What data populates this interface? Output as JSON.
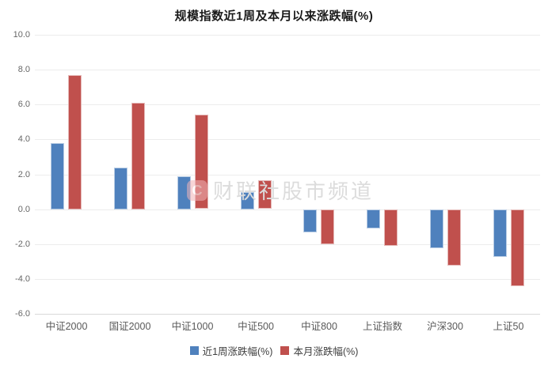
{
  "title": "规模指数近1周及本月以来涨跌幅(%)",
  "watermark": {
    "logo_text": "C",
    "text": "财联社股市频道",
    "logo_color": "#f2b4b8",
    "text_color": "#dcdcdc"
  },
  "legend": {
    "week_label": "近1周涨跌幅(%)",
    "month_label": "本月涨跌幅(%)"
  },
  "colors": {
    "week_bar": "#4f81bd",
    "week_bar_border": "#b8cce4",
    "month_bar": "#c0504d",
    "month_bar_border": "#e5b8b7",
    "gridline": "#ececec",
    "axis_text": "#595959"
  },
  "chart_data": {
    "type": "bar",
    "title": "规模指数近1周及本月以来涨跌幅(%)",
    "categories": [
      "中证2000",
      "国证2000",
      "中证1000",
      "中证500",
      "中证800",
      "上证指数",
      "沪深300",
      "上证50"
    ],
    "series": [
      {
        "name": "近1周涨跌幅(%)",
        "color": "#4f81bd",
        "border_color": "#b8cce4",
        "values": [
          3.8,
          2.4,
          1.9,
          1.0,
          -1.3,
          -1.1,
          -2.2,
          -2.7
        ]
      },
      {
        "name": "本月涨跌幅(%)",
        "color": "#c0504d",
        "border_color": "#e5b8b7",
        "values": [
          7.7,
          6.1,
          5.4,
          1.65,
          -2.0,
          -2.1,
          -3.2,
          -4.4
        ]
      }
    ],
    "xlabel": "",
    "ylabel": "",
    "ylim": [
      -6,
      10
    ],
    "ytick_step": 2,
    "ytick_labels": [
      "10.0",
      "8.0",
      "6.0",
      "4.0",
      "2.0",
      "0.0",
      "-2.0",
      "-4.0",
      "-6.0"
    ],
    "grid": "horizontal-only",
    "legend_position": "bottom-center"
  }
}
